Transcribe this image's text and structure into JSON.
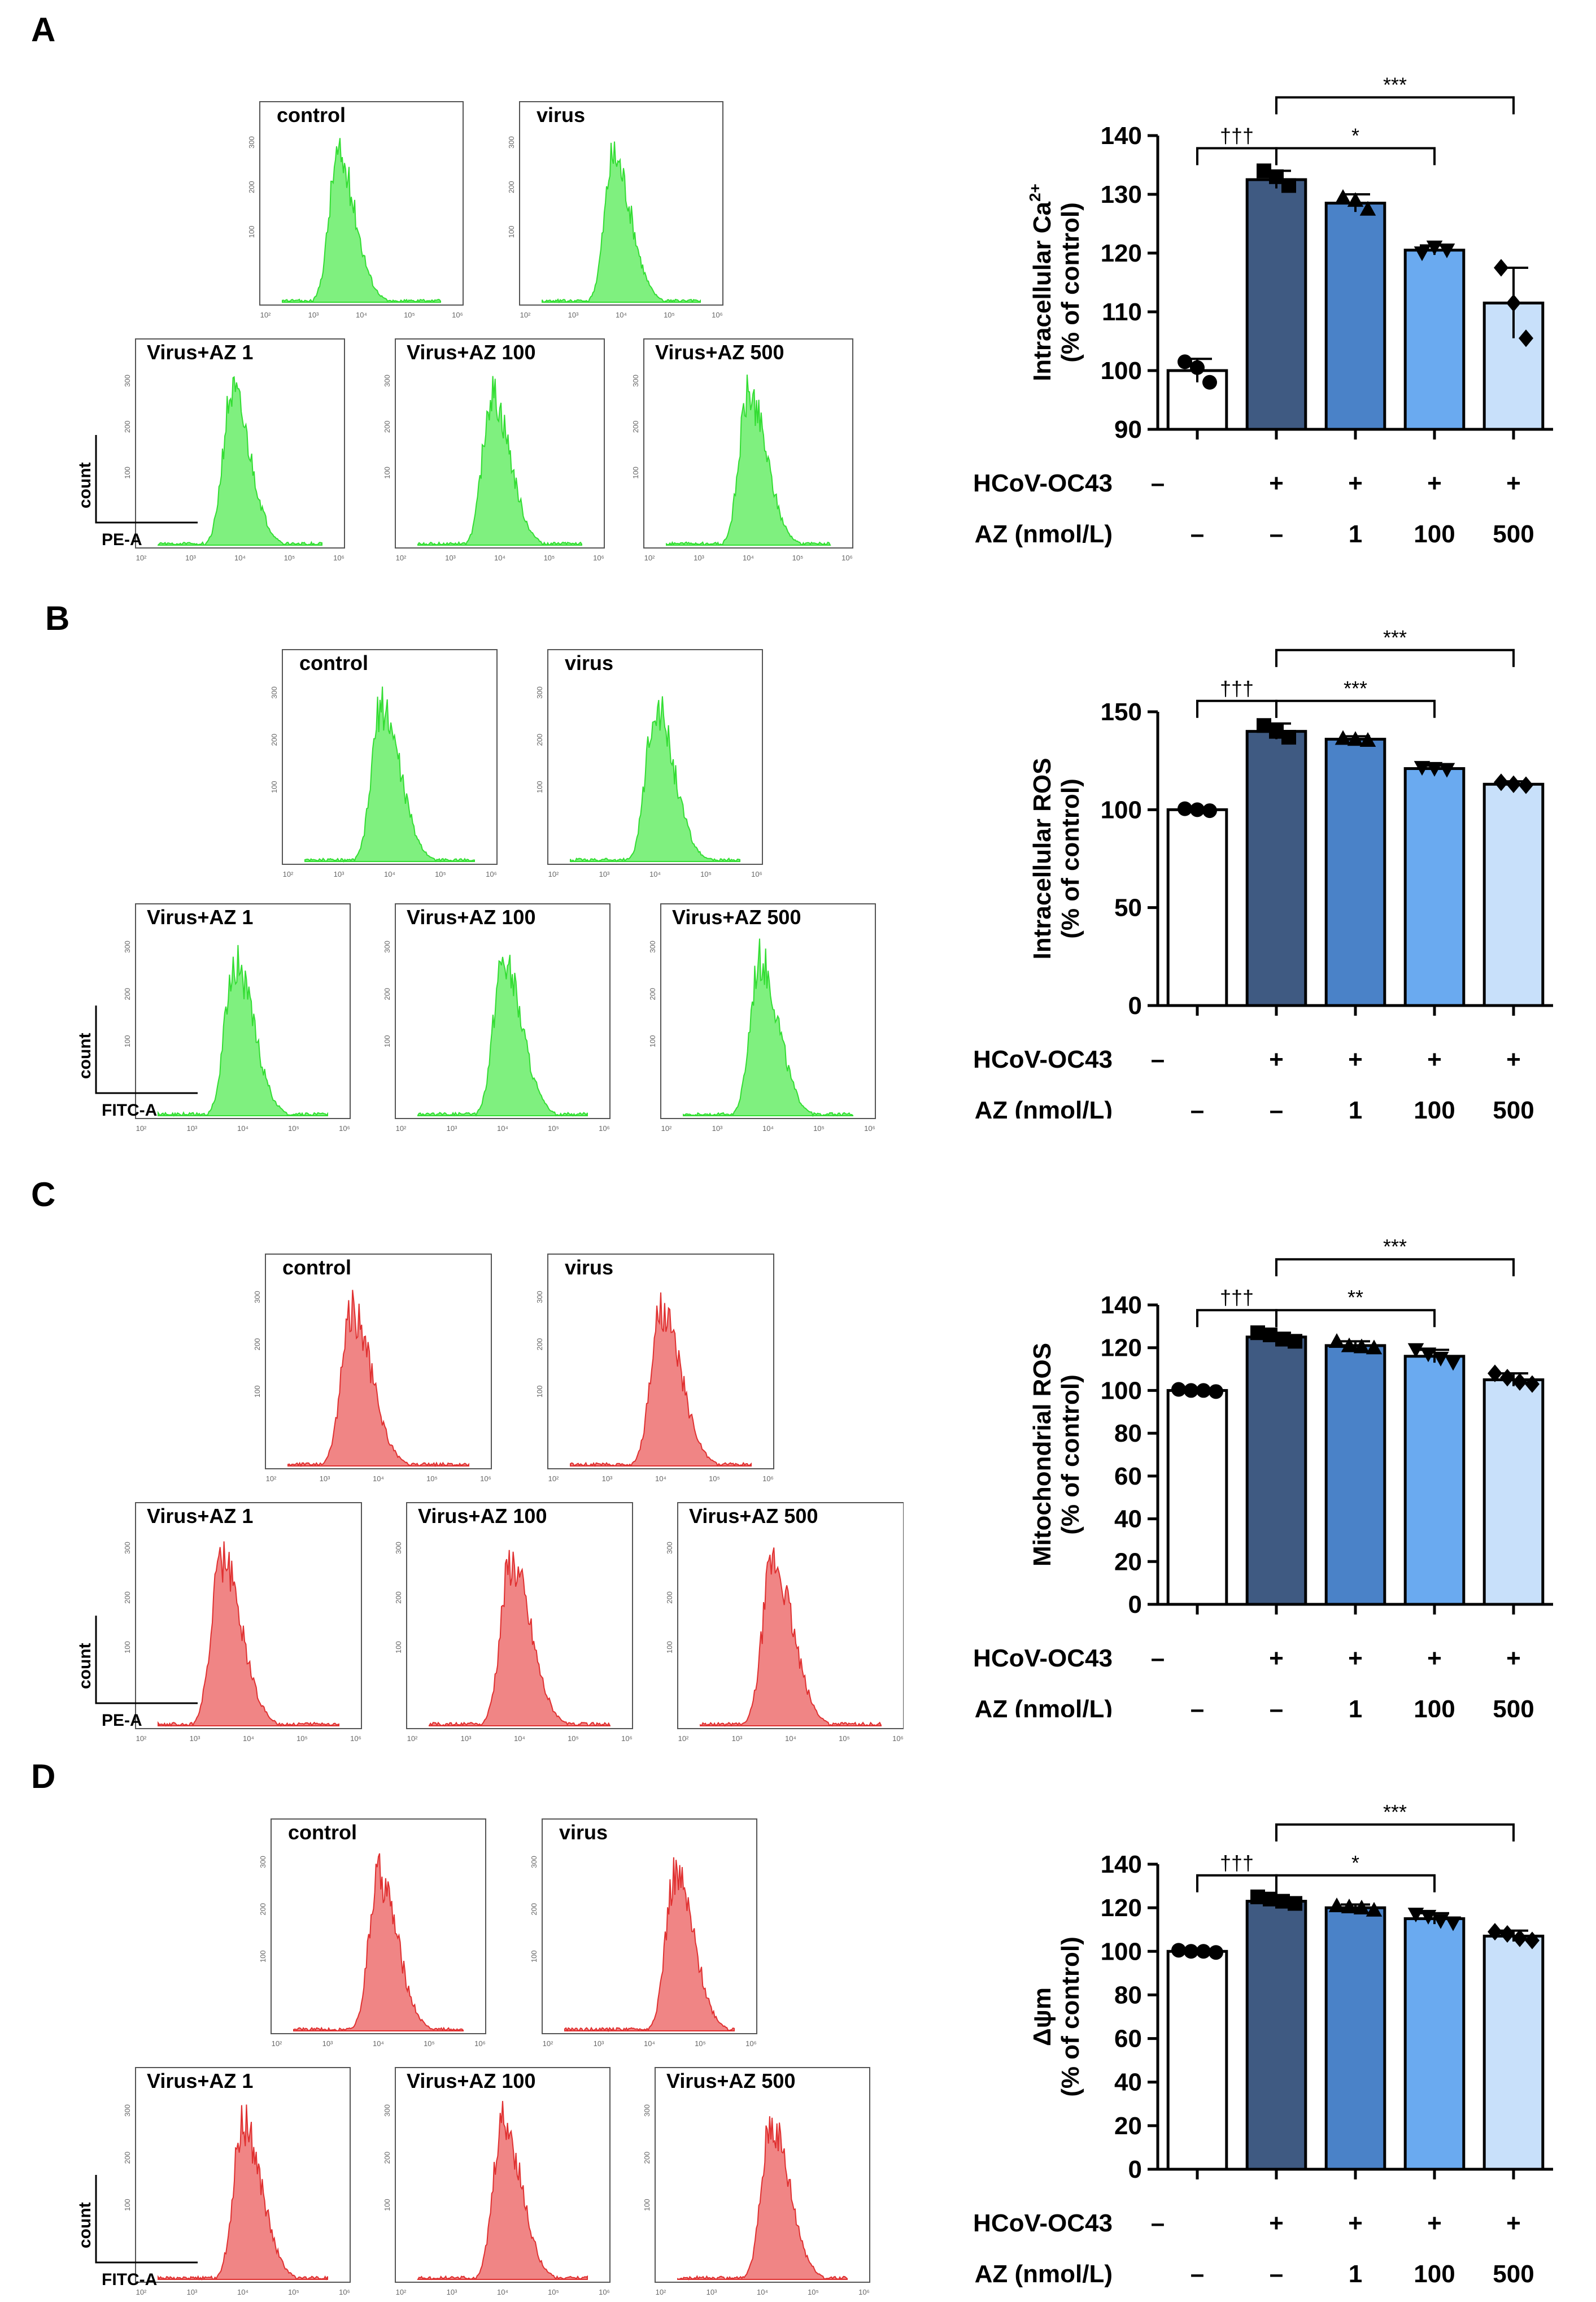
{
  "panels": [
    {
      "letter": "A",
      "color": "#33dd33",
      "fill": "#7ff07f",
      "hist_labels": [
        "control",
        "virus",
        "Virus+AZ 1",
        "Virus+AZ 100",
        "Virus+AZ 500"
      ],
      "y_axis_title": "count",
      "x_axis_title": "PE-A",
      "y_ticks": [
        "300",
        "200",
        "100"
      ],
      "x_ticks": [
        "10²",
        "10³",
        "10⁴",
        "10⁵",
        "10⁶"
      ]
    },
    {
      "letter": "B",
      "color": "#33dd33",
      "fill": "#7ff07f",
      "hist_labels": [
        "control",
        "virus",
        "Virus+AZ 1",
        "Virus+AZ 100",
        "Virus+AZ 500"
      ],
      "y_axis_title": "count",
      "x_axis_title": "FITC-A",
      "y_ticks": [
        "300",
        "200",
        "100"
      ],
      "x_ticks": [
        "10²",
        "10³",
        "10⁴",
        "10⁵",
        "10⁶"
      ]
    },
    {
      "letter": "C",
      "color": "#e03030",
      "fill": "#f08585",
      "hist_labels": [
        "control",
        "virus",
        "Virus+AZ 1",
        "Virus+AZ 100",
        "Virus+AZ 500"
      ],
      "y_axis_title": "count",
      "x_axis_title": "PE-A",
      "y_ticks": [
        "300",
        "200",
        "100"
      ],
      "x_ticks": [
        "10²",
        "10³",
        "10⁴",
        "10⁵",
        "10⁶"
      ]
    },
    {
      "letter": "D",
      "color": "#e03030",
      "fill": "#f08585",
      "hist_labels": [
        "control",
        "virus",
        "Virus+AZ 1",
        "Virus+AZ 100",
        "Virus+AZ 500"
      ],
      "y_axis_title": "count",
      "x_axis_title": "FITC-A",
      "y_ticks": [
        "300",
        "200",
        "100"
      ],
      "x_ticks": [
        "10²",
        "10³",
        "10⁴",
        "10⁵",
        "10⁶"
      ]
    }
  ],
  "group_rows": {
    "virus_label": "HCoV-OC43",
    "virus": [
      "–",
      "+",
      "+",
      "+",
      "+"
    ],
    "az_label": "AZ (nmol/L)",
    "az": [
      "–",
      "–",
      "1",
      "100",
      "500"
    ]
  },
  "bar_colors": [
    "#ffffff",
    "#3f5a82",
    "#4a82c8",
    "#6aaaf0",
    "#c8e0fa"
  ],
  "chart_data": [
    {
      "type": "bar",
      "panel": "A",
      "ylabel_line1": "Intracellular Ca",
      "ylabel_sup": "2+",
      "ylabel_line2": "(% of control)",
      "ylim": [
        90,
        140
      ],
      "yticks": [
        90,
        100,
        110,
        120,
        130,
        140
      ],
      "categories": [
        "control",
        "virus",
        "Virus+AZ 1",
        "Virus+AZ 100",
        "Virus+AZ 500"
      ],
      "values": [
        100,
        132.5,
        128.5,
        120.5,
        111.5
      ],
      "errors": [
        2,
        1.5,
        1.5,
        0.8,
        6
      ],
      "points": [
        [
          101.5,
          100.5,
          98
        ],
        [
          134,
          133,
          131.5
        ],
        [
          129.5,
          129,
          127.5
        ],
        [
          120,
          121,
          120.5
        ],
        [
          117.5,
          111.5,
          105.5
        ]
      ],
      "markers": [
        "circle",
        "square",
        "triangle",
        "tri-down",
        "diamond"
      ],
      "brackets": [
        {
          "from": 0,
          "to": 1,
          "label": "†††",
          "level": 0
        },
        {
          "from": 1,
          "to": 3,
          "label": "*",
          "level": 0
        },
        {
          "from": 1,
          "to": 4,
          "label": "***",
          "level": 1
        }
      ]
    },
    {
      "type": "bar",
      "panel": "B",
      "ylabel_line1": "Intracellular ROS",
      "ylabel_sup": "",
      "ylabel_line2": "(% of control)",
      "ylim": [
        0,
        150
      ],
      "yticks": [
        0,
        50,
        100,
        150
      ],
      "categories": [
        "control",
        "virus",
        "Virus+AZ 1",
        "Virus+AZ 100",
        "Virus+AZ 500"
      ],
      "values": [
        100,
        140,
        136,
        121,
        113
      ],
      "errors": [
        1,
        4,
        1.5,
        1.5,
        1.5
      ],
      "points": [
        [
          100.5,
          100,
          99.5
        ],
        [
          143,
          140,
          137
        ],
        [
          136.5,
          136,
          135.5
        ],
        [
          121.5,
          121,
          120.5
        ],
        [
          114,
          113,
          112.5
        ]
      ],
      "markers": [
        "circle",
        "square",
        "triangle",
        "tri-down",
        "diamond"
      ],
      "brackets": [
        {
          "from": 0,
          "to": 1,
          "label": "†††",
          "level": 0
        },
        {
          "from": 1,
          "to": 3,
          "label": "***",
          "level": 0
        },
        {
          "from": 1,
          "to": 4,
          "label": "***",
          "level": 1
        }
      ]
    },
    {
      "type": "bar",
      "panel": "C",
      "ylabel_line1": "Mitochondrial ROS",
      "ylabel_sup": "",
      "ylabel_line2": "(% of control)",
      "ylim": [
        0,
        140
      ],
      "yticks": [
        0,
        20,
        40,
        60,
        80,
        100,
        120,
        140
      ],
      "categories": [
        "control",
        "virus",
        "Virus+AZ 1",
        "Virus+AZ 100",
        "Virus+AZ 500"
      ],
      "values": [
        100,
        125,
        121,
        116,
        105
      ],
      "errors": [
        0.5,
        2,
        2,
        3,
        3
      ],
      "points": [
        [
          100.5,
          100,
          100,
          99.5
        ],
        [
          127,
          126,
          124,
          123
        ],
        [
          123,
          121,
          120.5,
          120
        ],
        [
          119,
          117,
          115,
          113
        ],
        [
          108,
          106,
          104,
          103
        ]
      ],
      "markers": [
        "circle",
        "square",
        "triangle",
        "tri-down",
        "diamond"
      ],
      "brackets": [
        {
          "from": 0,
          "to": 1,
          "label": "†††",
          "level": 0
        },
        {
          "from": 1,
          "to": 3,
          "label": "**",
          "level": 0
        },
        {
          "from": 1,
          "to": 4,
          "label": "***",
          "level": 1
        }
      ]
    },
    {
      "type": "bar",
      "panel": "D",
      "ylabel_line1": "Δψm",
      "ylabel_sup": "",
      "ylabel_line2": "(% of control)",
      "ylim": [
        0,
        140
      ],
      "yticks": [
        0,
        20,
        40,
        60,
        80,
        100,
        120,
        140
      ],
      "categories": [
        "control",
        "virus",
        "Virus+AZ 1",
        "Virus+AZ 100",
        "Virus+AZ 500"
      ],
      "values": [
        100,
        123,
        120,
        115,
        107
      ],
      "errors": [
        0.5,
        1.5,
        1.5,
        2.5,
        2.5
      ],
      "points": [
        [
          100.5,
          100,
          100,
          99.5
        ],
        [
          125,
          124,
          123,
          122
        ],
        [
          121,
          120.5,
          120,
          119
        ],
        [
          117,
          116,
          114,
          113
        ],
        [
          109,
          108,
          106,
          105
        ]
      ],
      "markers": [
        "circle",
        "square",
        "triangle",
        "tri-down",
        "diamond"
      ],
      "brackets": [
        {
          "from": 0,
          "to": 1,
          "label": "†††",
          "level": 0
        },
        {
          "from": 1,
          "to": 3,
          "label": "*",
          "level": 0
        },
        {
          "from": 1,
          "to": 4,
          "label": "***",
          "level": 1
        }
      ]
    }
  ]
}
